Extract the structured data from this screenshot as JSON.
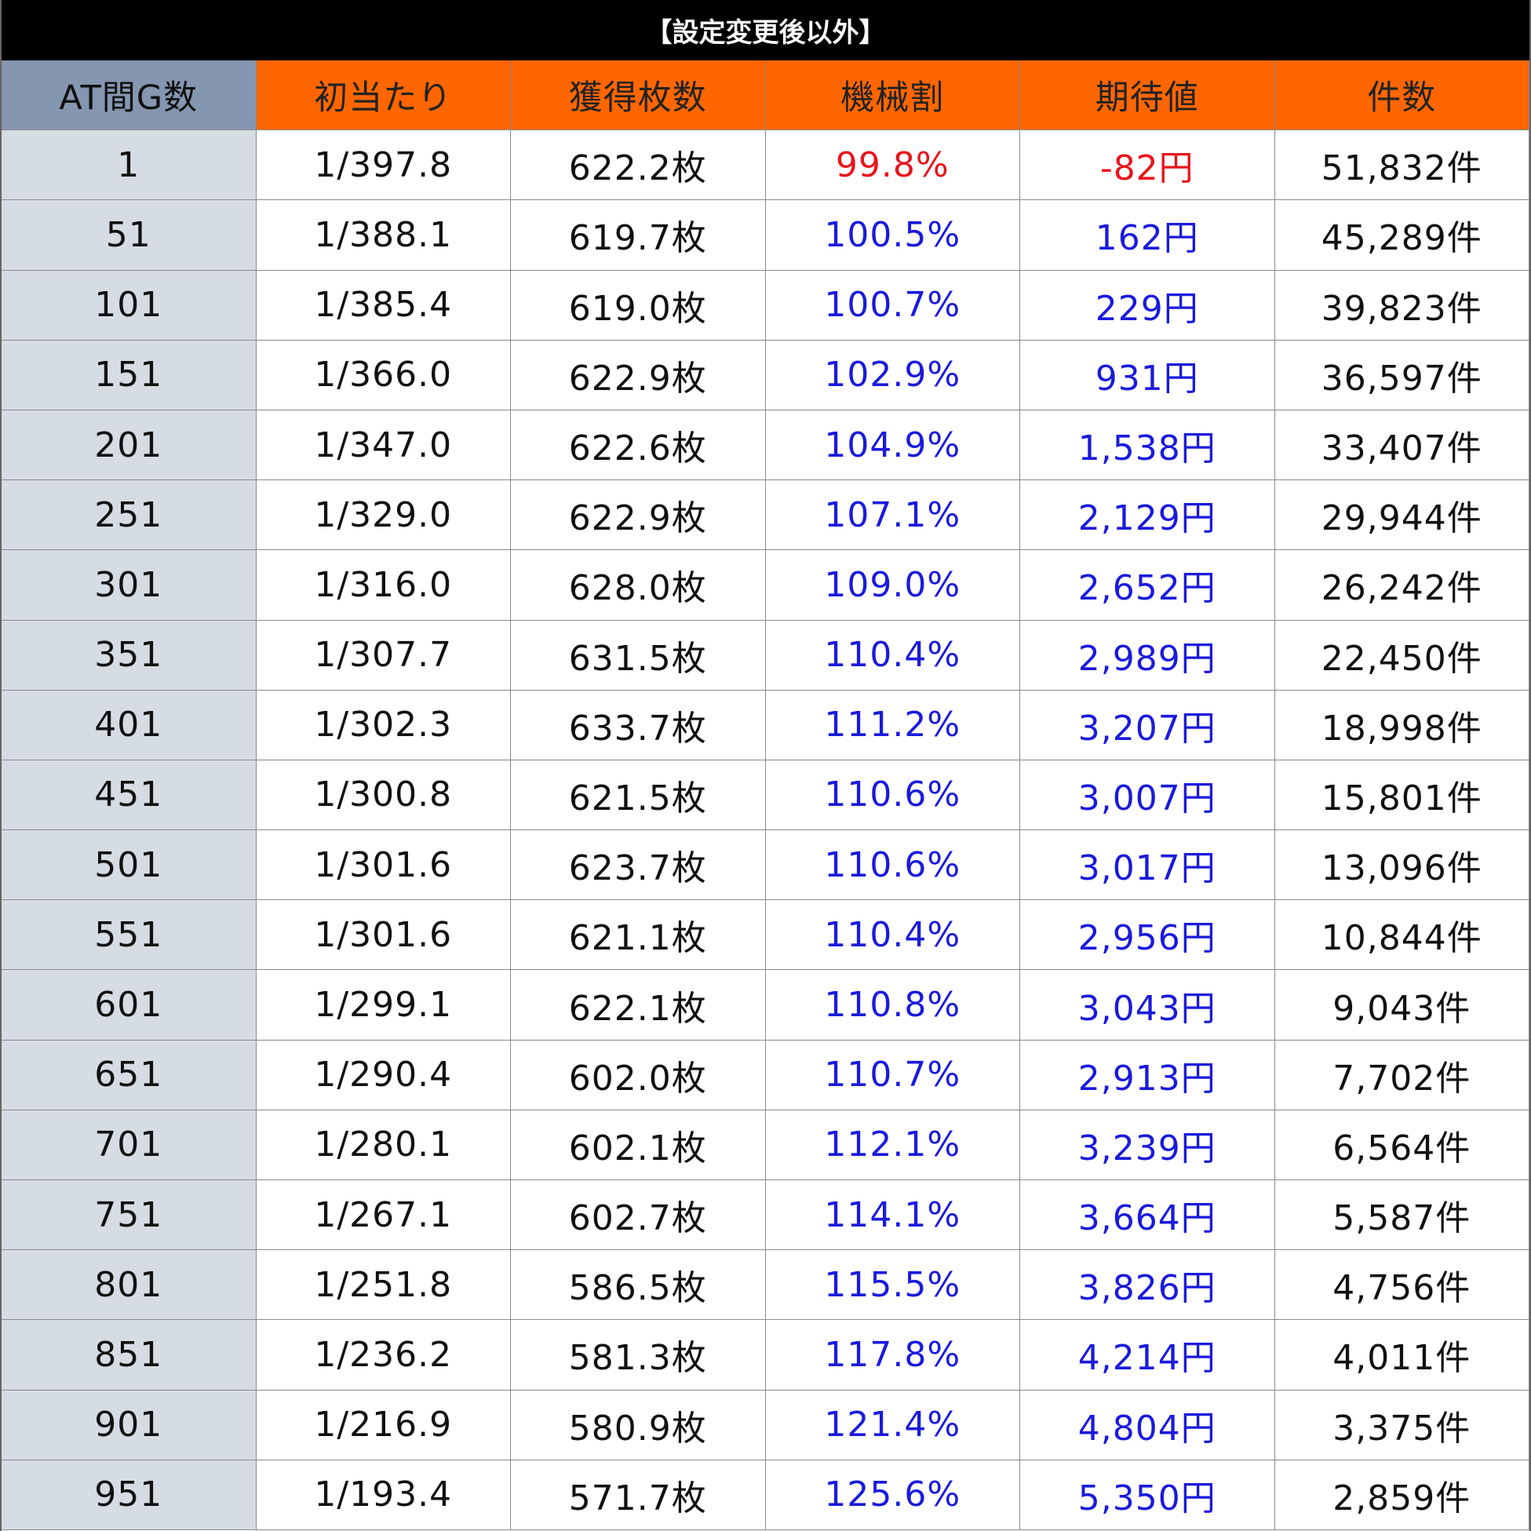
{
  "title": "【設定変更後以外】",
  "table": {
    "header": [
      "AT間G数",
      "初当たり",
      "獲得枚数",
      "機械割",
      "期待値",
      "件数"
    ],
    "rows": [
      [
        "1",
        "1/397.8",
        "622.2枚",
        "99.8%",
        "-82円",
        "51,832件"
      ],
      [
        "51",
        "1/388.1",
        "619.7枚",
        "100.5%",
        "162円",
        "45,289件"
      ],
      [
        "101",
        "1/385.4",
        "619.0枚",
        "100.7%",
        "229円",
        "39,823件"
      ],
      [
        "151",
        "1/366.0",
        "622.9枚",
        "102.9%",
        "931円",
        "36,597件"
      ],
      [
        "201",
        "1/347.0",
        "622.6枚",
        "104.9%",
        "1,538円",
        "33,407件"
      ],
      [
        "251",
        "1/329.0",
        "622.9枚",
        "107.1%",
        "2,129円",
        "29,944件"
      ],
      [
        "301",
        "1/316.0",
        "628.0枚",
        "109.0%",
        "2,652円",
        "26,242件"
      ],
      [
        "351",
        "1/307.7",
        "631.5枚",
        "110.4%",
        "2,989円",
        "22,450件"
      ],
      [
        "401",
        "1/302.3",
        "633.7枚",
        "111.2%",
        "3,207円",
        "18,998件"
      ],
      [
        "451",
        "1/300.8",
        "621.5枚",
        "110.6%",
        "3,007円",
        "15,801件"
      ],
      [
        "501",
        "1/301.6",
        "623.7枚",
        "110.6%",
        "3,017円",
        "13,096件"
      ],
      [
        "551",
        "1/301.6",
        "621.1枚",
        "110.4%",
        "2,956円",
        "10,844件"
      ],
      [
        "601",
        "1/299.1",
        "622.1枚",
        "110.8%",
        "3,043円",
        "9,043件"
      ],
      [
        "651",
        "1/290.4",
        "602.0枚",
        "110.7%",
        "2,913円",
        "7,702件"
      ],
      [
        "701",
        "1/280.1",
        "602.1枚",
        "112.1%",
        "3,239円",
        "6,564件"
      ],
      [
        "751",
        "1/267.1",
        "602.7枚",
        "114.1%",
        "3,664円",
        "5,587件"
      ],
      [
        "801",
        "1/251.8",
        "586.5枚",
        "115.5%",
        "3,826円",
        "4,756件"
      ],
      [
        "851",
        "1/236.2",
        "581.3枚",
        "117.8%",
        "4,214円",
        "4,011件"
      ],
      [
        "901",
        "1/216.9",
        "580.9枚",
        "121.4%",
        "4,804円",
        "3,375件"
      ],
      [
        "951",
        "1/193.4",
        "571.7枚",
        "125.6%",
        "5,350円",
        "2,859件"
      ]
    ]
  }
}
